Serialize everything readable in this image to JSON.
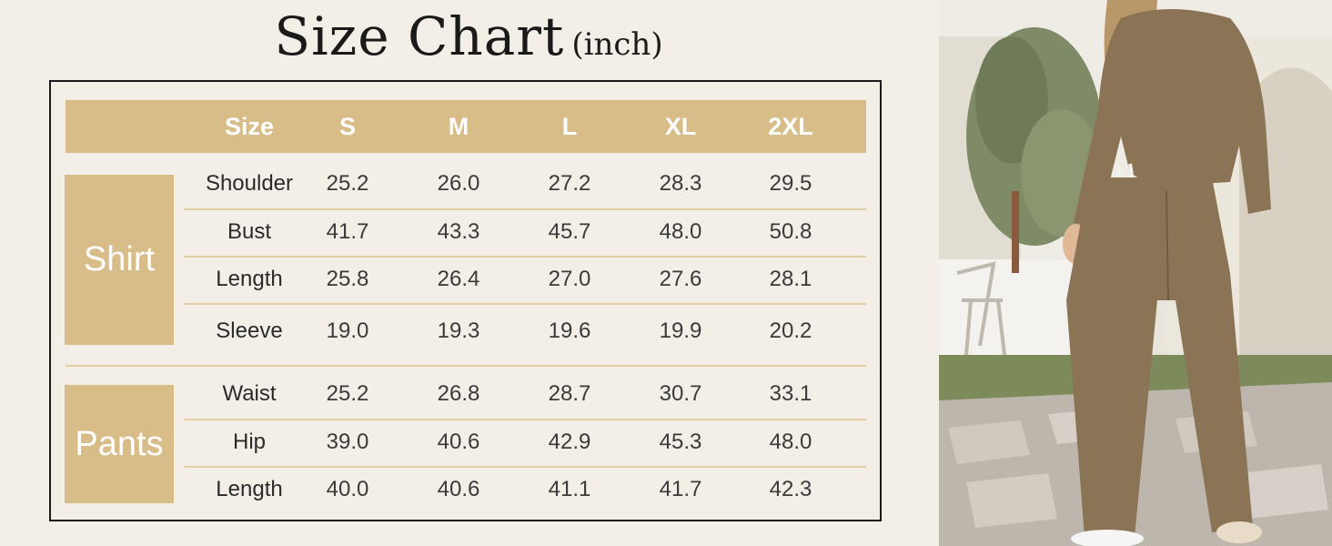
{
  "title": {
    "main": "Size Chart",
    "unit": "(inch)"
  },
  "header": {
    "label": "Size",
    "sizes": [
      "S",
      "M",
      "L",
      "XL",
      "2XL"
    ]
  },
  "shirt": {
    "label": "Shirt",
    "rows": [
      {
        "name": "Shoulder",
        "values": [
          "25.2",
          "26.0",
          "27.2",
          "28.3",
          "29.5"
        ]
      },
      {
        "name": "Bust",
        "values": [
          "41.7",
          "43.3",
          "45.7",
          "48.0",
          "50.8"
        ]
      },
      {
        "name": "Length",
        "values": [
          "25.8",
          "26.4",
          "27.0",
          "27.6",
          "28.1"
        ]
      },
      {
        "name": "Sleeve",
        "values": [
          "19.0",
          "19.3",
          "19.6",
          "19.9",
          "20.2"
        ]
      }
    ]
  },
  "pants": {
    "label": "Pants",
    "rows": [
      {
        "name": "Waist",
        "values": [
          "25.2",
          "26.8",
          "28.7",
          "30.7",
          "33.1"
        ]
      },
      {
        "name": "Hip",
        "values": [
          "39.0",
          "40.6",
          "42.9",
          "45.3",
          "48.0"
        ]
      },
      {
        "name": "Length",
        "values": [
          "40.0",
          "40.6",
          "41.1",
          "41.7",
          "42.3"
        ]
      }
    ]
  },
  "colors": {
    "accent": "#d9bd88",
    "background": "#f3efe7",
    "garment": "#8b7356"
  }
}
